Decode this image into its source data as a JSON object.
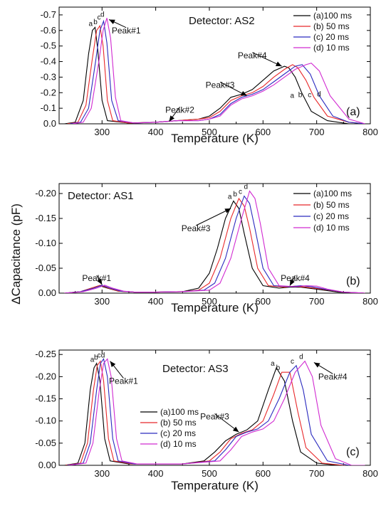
{
  "figure": {
    "ylabel": "ΔCapacitance (pF)"
  },
  "chart_data": [
    {
      "type": "line",
      "panel_tag": "(a)",
      "detector": "Detector: AS2",
      "xlabel": "Temperature (K)",
      "ylabel": "",
      "xlim": [
        220,
        800
      ],
      "ylim": [
        0,
        -0.75
      ],
      "x_ticks": [
        "300",
        "400",
        "500",
        "600",
        "700",
        "800"
      ],
      "y_ticks": [
        "0.0",
        "-0.1",
        "-0.2",
        "-0.3",
        "-0.4",
        "-0.5",
        "-0.6",
        "-0.7"
      ],
      "legend_position": "top-right",
      "series": [
        {
          "name": "(a)100 ms",
          "letter": "a",
          "color": "#000000",
          "x": [
            230,
            250,
            265,
            275,
            282,
            287,
            292,
            300,
            310,
            350,
            400,
            440,
            480,
            500,
            520,
            540,
            560,
            580,
            600,
            620,
            640,
            648,
            660,
            672,
            690,
            720,
            760,
            790
          ],
          "y": [
            0,
            -0.01,
            -0.15,
            -0.45,
            -0.6,
            -0.62,
            -0.48,
            -0.15,
            -0.02,
            -0.005,
            -0.01,
            -0.02,
            -0.03,
            -0.05,
            -0.1,
            -0.17,
            -0.19,
            -0.22,
            -0.28,
            -0.34,
            -0.37,
            -0.36,
            -0.3,
            -0.2,
            -0.08,
            -0.02,
            0,
            0
          ]
        },
        {
          "name": "(b) 50 ms",
          "letter": "b",
          "color": "#e8282a",
          "x": [
            235,
            255,
            270,
            282,
            290,
            296,
            302,
            310,
            320,
            350,
            400,
            440,
            480,
            500,
            520,
            540,
            560,
            580,
            600,
            620,
            640,
            655,
            665,
            680,
            695,
            720,
            760,
            790
          ],
          "y": [
            0,
            -0.01,
            -0.12,
            -0.42,
            -0.6,
            -0.63,
            -0.5,
            -0.15,
            -0.02,
            -0.005,
            -0.01,
            -0.02,
            -0.03,
            -0.04,
            -0.08,
            -0.15,
            -0.18,
            -0.2,
            -0.24,
            -0.3,
            -0.35,
            -0.38,
            -0.36,
            -0.28,
            -0.17,
            -0.05,
            -0.01,
            0
          ]
        },
        {
          "name": "(c) 20 ms",
          "letter": "c",
          "color": "#2a2abf",
          "x": [
            240,
            260,
            275,
            288,
            296,
            303,
            309,
            318,
            330,
            360,
            400,
            440,
            480,
            500,
            520,
            540,
            560,
            580,
            600,
            620,
            640,
            660,
            673,
            688,
            705,
            730,
            760,
            790
          ],
          "y": [
            0,
            -0.01,
            -0.1,
            -0.4,
            -0.6,
            -0.66,
            -0.52,
            -0.15,
            -0.02,
            -0.005,
            -0.01,
            -0.02,
            -0.02,
            -0.03,
            -0.06,
            -0.13,
            -0.17,
            -0.19,
            -0.22,
            -0.27,
            -0.32,
            -0.37,
            -0.38,
            -0.32,
            -0.18,
            -0.05,
            -0.01,
            0
          ]
        },
        {
          "name": "(d) 10 ms",
          "letter": "d",
          "color": "#d12ad1",
          "x": [
            245,
            265,
            280,
            294,
            302,
            309,
            316,
            325,
            335,
            360,
            400,
            440,
            480,
            500,
            520,
            540,
            560,
            580,
            600,
            620,
            640,
            660,
            680,
            690,
            705,
            725,
            760,
            790
          ],
          "y": [
            0,
            -0.01,
            -0.1,
            -0.4,
            -0.6,
            -0.68,
            -0.55,
            -0.17,
            -0.02,
            -0.005,
            -0.01,
            -0.02,
            -0.02,
            -0.03,
            -0.05,
            -0.12,
            -0.16,
            -0.18,
            -0.21,
            -0.25,
            -0.3,
            -0.35,
            -0.38,
            -0.39,
            -0.34,
            -0.18,
            -0.03,
            0
          ]
        }
      ],
      "annotations": [
        {
          "text": "Peak#1",
          "x": 345,
          "y": -0.6,
          "arrow_to": [
            313,
            -0.67
          ]
        },
        {
          "text": "Peak#2",
          "x": 445,
          "y": -0.09,
          "arrow_to": [
            425,
            -0.015
          ]
        },
        {
          "text": "Peak#3",
          "x": 520,
          "y": -0.25,
          "arrow_to": [
            570,
            -0.18
          ]
        },
        {
          "text": "Peak#4",
          "x": 580,
          "y": -0.44,
          "arrow_to": [
            635,
            -0.37
          ]
        }
      ]
    },
    {
      "type": "line",
      "panel_tag": "(b)",
      "detector": "Detector: AS1",
      "xlabel": "Temperature (K)",
      "ylabel": "",
      "xlim": [
        220,
        800
      ],
      "ylim": [
        0,
        -0.22
      ],
      "x_ticks": [
        "300",
        "400",
        "500",
        "600",
        "700",
        "800"
      ],
      "y_ticks": [
        "0.00",
        "-0.05",
        "-0.10",
        "-0.15",
        "-0.20"
      ],
      "legend_position": "top-right",
      "series": [
        {
          "name": "(a)100 ms",
          "letter": "a",
          "color": "#000000",
          "x": [
            230,
            260,
            280,
            295,
            310,
            330,
            360,
            400,
            450,
            480,
            500,
            515,
            530,
            545,
            555,
            565,
            580,
            600,
            630,
            650,
            670,
            700,
            740,
            790
          ],
          "y": [
            0,
            -0.003,
            -0.01,
            -0.015,
            -0.01,
            -0.004,
            -0.002,
            -0.002,
            -0.003,
            -0.01,
            -0.04,
            -0.09,
            -0.15,
            -0.185,
            -0.17,
            -0.12,
            -0.05,
            -0.015,
            -0.01,
            -0.012,
            -0.012,
            -0.008,
            -0.002,
            0
          ]
        },
        {
          "name": "(b) 50 ms",
          "letter": "b",
          "color": "#e8282a",
          "x": [
            230,
            260,
            280,
            297,
            312,
            330,
            360,
            400,
            450,
            480,
            500,
            520,
            540,
            555,
            565,
            575,
            590,
            610,
            640,
            660,
            680,
            710,
            750,
            790
          ],
          "y": [
            0,
            -0.003,
            -0.01,
            -0.016,
            -0.01,
            -0.004,
            -0.002,
            -0.002,
            -0.003,
            -0.006,
            -0.02,
            -0.07,
            -0.15,
            -0.19,
            -0.175,
            -0.13,
            -0.05,
            -0.015,
            -0.012,
            -0.014,
            -0.012,
            -0.008,
            -0.002,
            0
          ]
        },
        {
          "name": "(c) 20 ms",
          "letter": "c",
          "color": "#2a2abf",
          "x": [
            230,
            260,
            285,
            300,
            315,
            335,
            360,
            400,
            450,
            490,
            510,
            530,
            550,
            565,
            575,
            585,
            600,
            620,
            650,
            670,
            690,
            715,
            750,
            790
          ],
          "y": [
            0,
            -0.003,
            -0.01,
            -0.016,
            -0.01,
            -0.004,
            -0.002,
            -0.002,
            -0.003,
            -0.006,
            -0.02,
            -0.07,
            -0.15,
            -0.195,
            -0.18,
            -0.13,
            -0.05,
            -0.015,
            -0.013,
            -0.015,
            -0.013,
            -0.008,
            -0.002,
            0
          ]
        },
        {
          "name": "(d) 10 ms",
          "letter": "d",
          "color": "#d12ad1",
          "x": [
            230,
            265,
            290,
            305,
            320,
            340,
            360,
            400,
            450,
            500,
            520,
            540,
            560,
            575,
            585,
            595,
            610,
            630,
            660,
            680,
            700,
            720,
            750,
            790
          ],
          "y": [
            0,
            -0.003,
            -0.01,
            -0.016,
            -0.01,
            -0.004,
            -0.002,
            -0.002,
            -0.003,
            -0.006,
            -0.02,
            -0.07,
            -0.15,
            -0.205,
            -0.19,
            -0.14,
            -0.05,
            -0.015,
            -0.013,
            -0.015,
            -0.014,
            -0.008,
            -0.002,
            0
          ]
        }
      ],
      "annotations": [
        {
          "text": "Peak#1",
          "x": 290,
          "y": -0.03,
          "arrow_to": [
            300,
            -0.017
          ]
        },
        {
          "text": "Peak#3",
          "x": 475,
          "y": -0.13,
          "arrow_to": [
            540,
            -0.17
          ]
        },
        {
          "text": "Peak#4",
          "x": 660,
          "y": -0.03,
          "arrow_to": [
            650,
            -0.015
          ]
        }
      ]
    },
    {
      "type": "line",
      "panel_tag": "(c)",
      "detector": "Detector: AS3",
      "xlabel": "Temperature (K)",
      "ylabel": "",
      "xlim": [
        220,
        800
      ],
      "ylim": [
        0,
        -0.26
      ],
      "x_ticks": [
        "300",
        "400",
        "500",
        "600",
        "700",
        "800"
      ],
      "y_ticks": [
        "0.00",
        "-0.05",
        "-0.10",
        "-0.15",
        "-0.20",
        "-0.25"
      ],
      "legend_position": "bottom-left",
      "series": [
        {
          "name": "(a)100 ms",
          "letter": "a",
          "color": "#000000",
          "x": [
            230,
            255,
            268,
            278,
            285,
            290,
            296,
            305,
            315,
            350,
            400,
            450,
            490,
            510,
            530,
            550,
            570,
            590,
            610,
            625,
            640,
            655,
            670,
            700,
            740,
            790
          ],
          "y": [
            0,
            -0.005,
            -0.05,
            -0.17,
            -0.22,
            -0.23,
            -0.19,
            -0.06,
            -0.01,
            -0.003,
            -0.003,
            -0.003,
            -0.01,
            -0.03,
            -0.055,
            -0.07,
            -0.08,
            -0.1,
            -0.17,
            -0.22,
            -0.19,
            -0.1,
            -0.03,
            -0.005,
            0,
            0
          ]
        },
        {
          "name": "(b) 50 ms",
          "letter": "b",
          "color": "#e8282a",
          "x": [
            232,
            260,
            273,
            284,
            291,
            297,
            303,
            312,
            322,
            355,
            400,
            450,
            500,
            520,
            540,
            560,
            580,
            600,
            620,
            635,
            650,
            665,
            680,
            710,
            750,
            790
          ],
          "y": [
            0,
            -0.005,
            -0.05,
            -0.17,
            -0.225,
            -0.235,
            -0.19,
            -0.06,
            -0.01,
            -0.003,
            -0.003,
            -0.003,
            -0.01,
            -0.03,
            -0.06,
            -0.072,
            -0.08,
            -0.1,
            -0.16,
            -0.21,
            -0.21,
            -0.12,
            -0.04,
            -0.005,
            0,
            0
          ]
        },
        {
          "name": "(c) 20 ms",
          "letter": "c",
          "color": "#2a2abf",
          "x": [
            235,
            265,
            278,
            290,
            297,
            303,
            310,
            320,
            330,
            360,
            400,
            450,
            510,
            530,
            550,
            570,
            590,
            610,
            630,
            650,
            662,
            675,
            690,
            720,
            760,
            790
          ],
          "y": [
            0,
            -0.005,
            -0.05,
            -0.17,
            -0.23,
            -0.24,
            -0.2,
            -0.06,
            -0.01,
            -0.003,
            -0.003,
            -0.003,
            -0.01,
            -0.035,
            -0.065,
            -0.075,
            -0.082,
            -0.1,
            -0.15,
            -0.21,
            -0.225,
            -0.17,
            -0.07,
            -0.01,
            0,
            0
          ]
        },
        {
          "name": "(d) 10 ms",
          "letter": "d",
          "color": "#d12ad1",
          "x": [
            238,
            270,
            283,
            295,
            303,
            310,
            317,
            327,
            337,
            365,
            400,
            450,
            520,
            540,
            560,
            580,
            600,
            620,
            640,
            660,
            678,
            692,
            708,
            735,
            765,
            790
          ],
          "y": [
            0,
            -0.005,
            -0.05,
            -0.17,
            -0.23,
            -0.24,
            -0.2,
            -0.06,
            -0.01,
            -0.003,
            -0.003,
            -0.003,
            -0.01,
            -0.035,
            -0.065,
            -0.075,
            -0.082,
            -0.1,
            -0.15,
            -0.21,
            -0.235,
            -0.2,
            -0.09,
            -0.015,
            0,
            0
          ]
        }
      ],
      "annotations": [
        {
          "text": "Peak#1",
          "x": 340,
          "y": -0.19,
          "arrow_to": [
            315,
            -0.235
          ]
        },
        {
          "text": "Peak#3",
          "x": 510,
          "y": -0.11,
          "arrow_to": [
            555,
            -0.075
          ]
        },
        {
          "text": "Peak#4",
          "x": 730,
          "y": -0.2,
          "arrow_to": [
            695,
            -0.232
          ]
        }
      ]
    }
  ]
}
